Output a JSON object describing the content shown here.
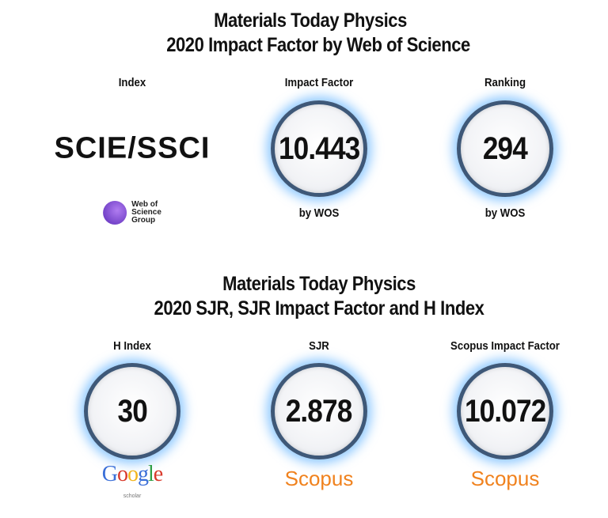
{
  "sections": [
    {
      "title": [
        "Materials Today Physics",
        "2020 Impact Factor by Web of Science"
      ],
      "items": [
        {
          "label": "Index",
          "value": "SCIE/SSCI",
          "logo": [
            "Web of",
            "Science",
            "Group"
          ]
        },
        {
          "label": "Impact Factor",
          "value": "10.443",
          "note": "by WOS"
        },
        {
          "label": "Ranking",
          "value": "294",
          "note": "by WOS"
        }
      ]
    },
    {
      "title": [
        "Materials Today Physics",
        "2020 SJR, SJR Impact Factor and H Index"
      ],
      "items": [
        {
          "label": "H Index",
          "value": "30",
          "logo": [
            "Google",
            "scholar"
          ]
        },
        {
          "label": "SJR",
          "value": "2.878",
          "logo": [
            "Scopus"
          ]
        },
        {
          "label": "Scopus Impact Factor",
          "value": "10.072",
          "logo": [
            "Scopus"
          ]
        }
      ]
    }
  ]
}
